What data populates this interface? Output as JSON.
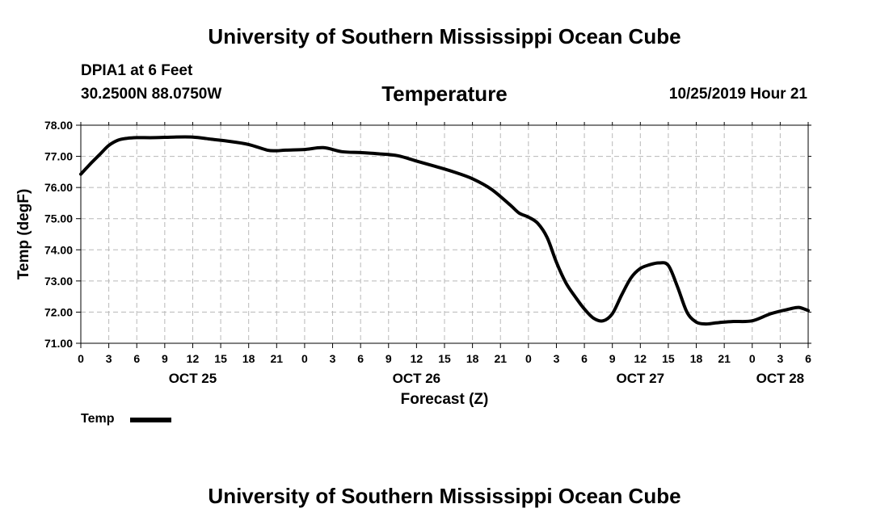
{
  "header": {
    "title": "University of Southern Mississippi Ocean Cube",
    "station": "DPIA1 at 6 Feet",
    "coordinates": "30.2500N 88.0750W",
    "run_time": "10/25/2019 Hour 21"
  },
  "footer": {
    "title": "University of Southern Mississippi Ocean Cube"
  },
  "chart_data": {
    "type": "line",
    "title": "Temperature",
    "xlabel": "Forecast (Z)",
    "ylabel": "Temp (degF)",
    "ylim": [
      71,
      78
    ],
    "y_ticks": [
      "71.00",
      "72.00",
      "73.00",
      "74.00",
      "75.00",
      "76.00",
      "77.00",
      "78.00"
    ],
    "xlim_hours": [
      0,
      78
    ],
    "x_tick_labels": [
      "0",
      "3",
      "6",
      "9",
      "12",
      "15",
      "18",
      "21",
      "0",
      "3",
      "6",
      "9",
      "12",
      "15",
      "18",
      "21",
      "0",
      "3",
      "6",
      "9",
      "12",
      "15",
      "18",
      "21",
      "0",
      "3",
      "6"
    ],
    "day_labels": [
      {
        "label": "OCT 25",
        "hour": 12
      },
      {
        "label": "OCT 26",
        "hour": 36
      },
      {
        "label": "OCT 27",
        "hour": 60
      },
      {
        "label": "OCT 28",
        "hour": 75
      }
    ],
    "grid": true,
    "legend": [
      {
        "name": "Temp",
        "position": "bottom-left"
      }
    ],
    "series": [
      {
        "name": "Temp",
        "color": "#000000",
        "x": [
          0,
          1,
          2,
          3,
          4,
          5,
          6,
          8,
          10,
          12,
          14,
          16,
          18,
          20,
          21,
          22,
          24,
          26,
          28,
          30,
          32,
          34,
          36,
          38,
          40,
          42,
          44,
          46,
          47,
          48,
          49,
          50,
          51,
          52,
          53,
          54,
          55,
          56,
          57,
          58,
          59,
          60,
          61,
          62,
          63,
          64,
          65,
          66,
          67,
          68,
          69,
          70,
          72,
          74,
          76,
          77,
          78
        ],
        "y": [
          76.43,
          76.75,
          77.05,
          77.35,
          77.52,
          77.58,
          77.6,
          77.6,
          77.62,
          77.62,
          77.55,
          77.48,
          77.38,
          77.2,
          77.18,
          77.2,
          77.22,
          77.28,
          77.15,
          77.12,
          77.08,
          77.02,
          76.85,
          76.68,
          76.5,
          76.28,
          75.95,
          75.45,
          75.18,
          75.05,
          74.85,
          74.4,
          73.6,
          72.95,
          72.5,
          72.1,
          71.8,
          71.72,
          71.95,
          72.55,
          73.1,
          73.4,
          73.52,
          73.58,
          73.5,
          72.8,
          72.0,
          71.68,
          71.62,
          71.65,
          71.68,
          71.7,
          71.72,
          71.95,
          72.1,
          72.15,
          72.05
        ]
      }
    ]
  }
}
